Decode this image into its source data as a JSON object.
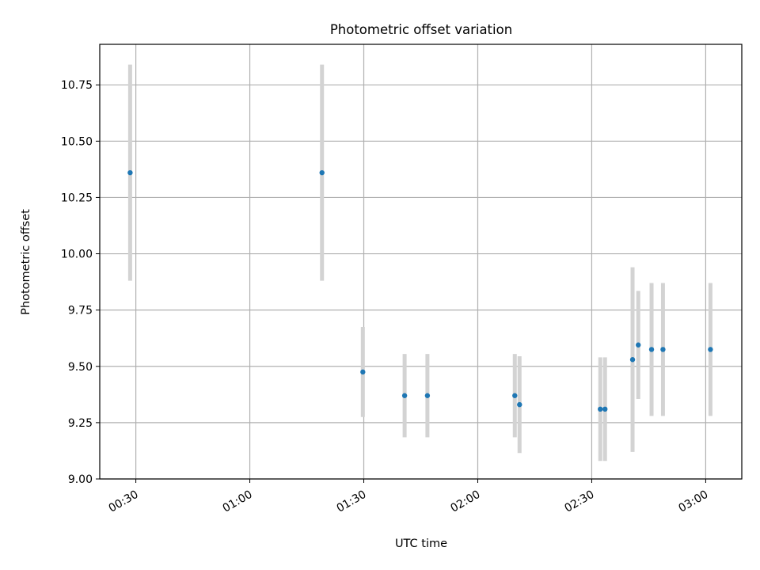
{
  "chart_data": {
    "type": "scatter",
    "title": "Photometric offset variation",
    "xlabel": "UTC time",
    "ylabel": "Photometric offset",
    "x_unit": "UTC time (HH:MM)",
    "xlim": [
      "00:20:30",
      "03:09:30"
    ],
    "ylim": [
      9.0,
      10.93
    ],
    "x_ticks": [
      "00:30",
      "01:00",
      "01:30",
      "02:00",
      "02:30",
      "03:00"
    ],
    "y_ticks": [
      "9.00",
      "9.25",
      "9.50",
      "9.75",
      "10.00",
      "10.25",
      "10.50",
      "10.75"
    ],
    "grid": true,
    "series": [
      {
        "marker_color": "#1f77b4",
        "errorbar_color": "#d3d3d3",
        "points": [
          {
            "x": "00:28:30",
            "y": 10.36,
            "yerr": 0.48
          },
          {
            "x": "01:19:00",
            "y": 10.36,
            "yerr": 0.48
          },
          {
            "x": "01:29:45",
            "y": 9.475,
            "yerr": 0.2
          },
          {
            "x": "01:40:45",
            "y": 9.37,
            "yerr": 0.185
          },
          {
            "x": "01:46:45",
            "y": 9.37,
            "yerr": 0.185
          },
          {
            "x": "02:09:45",
            "y": 9.37,
            "yerr": 0.185
          },
          {
            "x": "02:11:00",
            "y": 9.33,
            "yerr": 0.215
          },
          {
            "x": "02:32:15",
            "y": 9.31,
            "yerr": 0.23
          },
          {
            "x": "02:33:30",
            "y": 9.31,
            "yerr": 0.23
          },
          {
            "x": "02:40:45",
            "y": 9.53,
            "yerr": 0.41
          },
          {
            "x": "02:42:15",
            "y": 9.595,
            "yerr": 0.24
          },
          {
            "x": "02:45:45",
            "y": 9.575,
            "yerr": 0.295
          },
          {
            "x": "02:48:45",
            "y": 9.575,
            "yerr": 0.295
          },
          {
            "x": "03:01:15",
            "y": 9.575,
            "yerr": 0.295
          }
        ]
      }
    ]
  }
}
